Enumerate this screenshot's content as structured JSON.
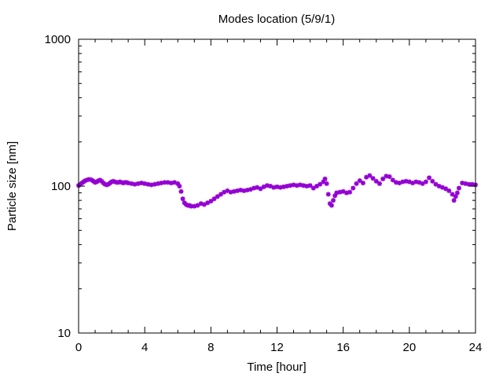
{
  "chart_data": {
    "type": "scatter",
    "title": "Modes location (5/9/1)",
    "xlabel": "Time [hour]",
    "ylabel": "Particle size [nm]",
    "xlim": [
      0,
      24
    ],
    "ylim": [
      10,
      1000
    ],
    "yscale": "log",
    "xticks": [
      0,
      4,
      8,
      12,
      16,
      20,
      24
    ],
    "xtick_labels": [
      "0",
      "4",
      "8",
      "12",
      "16",
      "20",
      "24"
    ],
    "yticks": [
      10,
      100,
      1000
    ],
    "ytick_labels": [
      "10",
      "100",
      "1000"
    ],
    "grid": false,
    "legend": "none",
    "marker_color": "#9400D3",
    "series": [
      {
        "x": [
          0.0,
          0.1,
          0.2,
          0.3,
          0.4,
          0.5,
          0.6,
          0.7,
          0.8,
          0.9,
          1.0,
          1.1,
          1.2,
          1.3,
          1.4,
          1.5,
          1.6,
          1.7,
          1.8,
          1.9,
          2.0,
          2.1,
          2.2,
          2.3,
          2.4,
          2.5,
          2.6,
          2.7,
          2.8,
          2.9,
          3.0,
          3.2,
          3.4,
          3.6,
          3.8,
          4.0,
          4.2,
          4.4,
          4.6,
          4.8,
          5.0,
          5.2,
          5.4,
          5.6,
          5.8,
          6.0,
          6.1,
          6.2,
          6.3,
          6.4,
          6.5,
          6.6,
          6.7,
          6.8,
          7.0,
          7.2,
          7.4,
          7.6,
          7.8,
          8.0,
          8.2,
          8.4,
          8.6,
          8.8,
          9.0,
          9.2,
          9.4,
          9.6,
          9.8,
          10.0,
          10.2,
          10.4,
          10.6,
          10.8,
          11.0,
          11.2,
          11.4,
          11.6,
          11.8,
          12.0,
          12.2,
          12.4,
          12.6,
          12.8,
          13.0,
          13.2,
          13.4,
          13.6,
          13.8,
          14.0,
          14.2,
          14.4,
          14.6,
          14.8,
          14.9,
          15.0,
          15.1,
          15.2,
          15.3,
          15.4,
          15.5,
          15.6,
          15.8,
          16.0,
          16.2,
          16.4,
          16.6,
          16.8,
          17.0,
          17.2,
          17.4,
          17.6,
          17.8,
          18.0,
          18.2,
          18.4,
          18.6,
          18.8,
          19.0,
          19.2,
          19.4,
          19.6,
          19.8,
          20.0,
          20.2,
          20.4,
          20.6,
          20.8,
          21.0,
          21.2,
          21.4,
          21.6,
          21.8,
          22.0,
          22.2,
          22.4,
          22.6,
          22.7,
          22.8,
          22.9,
          23.0,
          23.2,
          23.4,
          23.6,
          23.8,
          24.0
        ],
        "y": [
          101,
          103,
          105,
          107,
          109,
          110,
          111,
          111,
          110,
          108,
          106,
          107,
          109,
          110,
          108,
          105,
          103,
          102,
          103,
          105,
          107,
          108,
          107,
          106,
          106,
          107,
          106,
          105,
          106,
          106,
          105,
          104,
          103,
          104,
          105,
          104,
          103,
          102,
          103,
          104,
          105,
          106,
          106,
          105,
          106,
          104,
          100,
          92,
          82,
          77,
          75,
          74,
          74,
          73,
          73,
          74,
          76,
          75,
          77,
          79,
          82,
          85,
          88,
          91,
          93,
          91,
          92,
          93,
          94,
          93,
          94,
          95,
          97,
          98,
          96,
          99,
          101,
          100,
          98,
          99,
          98,
          99,
          100,
          101,
          102,
          101,
          102,
          101,
          100,
          101,
          97,
          100,
          103,
          107,
          112,
          104,
          88,
          76,
          74,
          80,
          86,
          90,
          91,
          92,
          90,
          91,
          97,
          104,
          109,
          105,
          115,
          118,
          113,
          108,
          104,
          112,
          117,
          116,
          110,
          106,
          105,
          107,
          108,
          107,
          105,
          107,
          106,
          104,
          107,
          114,
          108,
          103,
          100,
          98,
          96,
          93,
          88,
          80,
          85,
          90,
          97,
          105,
          104,
          103,
          103,
          102
        ]
      }
    ]
  }
}
